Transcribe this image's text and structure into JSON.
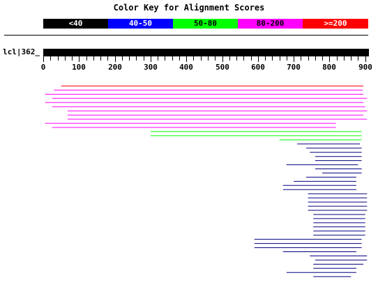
{
  "color_key": {
    "title": "Color Key for Alignment Scores",
    "ranges": [
      {
        "label": "<40",
        "color": "#000000"
      },
      {
        "label": "40-50",
        "color": "#0000ff"
      },
      {
        "label": "50-80",
        "color": "#00ff00"
      },
      {
        "label": "80-200",
        "color": "#ff00ff"
      },
      {
        "label": ">=200",
        "color": "#ff0000"
      }
    ]
  },
  "query": {
    "label": "lcl|362_"
  },
  "axis": {
    "ticks": [
      "0",
      "100",
      "200",
      "300",
      "400",
      "500",
      "600",
      "700",
      "800",
      "900"
    ]
  },
  "hits": [
    {
      "start": 50,
      "end": 895,
      "color": "#ff0000"
    },
    {
      "start": 30,
      "end": 893,
      "color": "#ff00ff"
    },
    {
      "start": 5,
      "end": 895,
      "color": "#ff00ff"
    },
    {
      "start": 25,
      "end": 905,
      "color": "#ff00ff"
    },
    {
      "start": 5,
      "end": 895,
      "color": "#ff00ff"
    },
    {
      "start": 25,
      "end": 900,
      "color": "#ff00ff"
    },
    {
      "start": 68,
      "end": 905,
      "color": "#ff00ff"
    },
    {
      "start": 68,
      "end": 895,
      "color": "#ff00ff"
    },
    {
      "start": 68,
      "end": 905,
      "color": "#ff00ff"
    },
    {
      "start": 5,
      "end": 818,
      "color": "#ff00ff"
    },
    {
      "start": 25,
      "end": 818,
      "color": "#ff00ff"
    },
    {
      "start": 300,
      "end": 890,
      "color": "#00ff00"
    },
    {
      "start": 300,
      "end": 890,
      "color": "#00ff00"
    },
    {
      "start": 660,
      "end": 890,
      "color": "#00ff00"
    },
    {
      "start": 710,
      "end": 885,
      "color": "#000080"
    },
    {
      "start": 735,
      "end": 890,
      "color": "#000080"
    },
    {
      "start": 745,
      "end": 890,
      "color": "#000080"
    },
    {
      "start": 760,
      "end": 890,
      "color": "#000080"
    },
    {
      "start": 760,
      "end": 890,
      "color": "#000080"
    },
    {
      "start": 680,
      "end": 880,
      "color": "#000080"
    },
    {
      "start": 760,
      "end": 890,
      "color": "#000080"
    },
    {
      "start": 780,
      "end": 890,
      "color": "#000080"
    },
    {
      "start": 735,
      "end": 875,
      "color": "#000080"
    },
    {
      "start": 700,
      "end": 875,
      "color": "#000080"
    },
    {
      "start": 670,
      "end": 875,
      "color": "#000080"
    },
    {
      "start": 670,
      "end": 875,
      "color": "#000080"
    },
    {
      "start": 740,
      "end": 905,
      "color": "#000080"
    },
    {
      "start": 740,
      "end": 905,
      "color": "#000080"
    },
    {
      "start": 740,
      "end": 905,
      "color": "#000080"
    },
    {
      "start": 740,
      "end": 905,
      "color": "#000080"
    },
    {
      "start": 740,
      "end": 905,
      "color": "#000080"
    },
    {
      "start": 755,
      "end": 900,
      "color": "#000080"
    },
    {
      "start": 755,
      "end": 900,
      "color": "#000080"
    },
    {
      "start": 755,
      "end": 900,
      "color": "#000080"
    },
    {
      "start": 755,
      "end": 900,
      "color": "#000080"
    },
    {
      "start": 755,
      "end": 900,
      "color": "#000080"
    },
    {
      "start": 755,
      "end": 900,
      "color": "#000080"
    },
    {
      "start": 590,
      "end": 890,
      "color": "#000080"
    },
    {
      "start": 590,
      "end": 890,
      "color": "#000080"
    },
    {
      "start": 590,
      "end": 890,
      "color": "#000080"
    },
    {
      "start": 670,
      "end": 875,
      "color": "#000080"
    },
    {
      "start": 745,
      "end": 905,
      "color": "#000080"
    },
    {
      "start": 760,
      "end": 905,
      "color": "#000080"
    },
    {
      "start": 755,
      "end": 895,
      "color": "#000080"
    },
    {
      "start": 755,
      "end": 875,
      "color": "#000080"
    },
    {
      "start": 680,
      "end": 875,
      "color": "#000080"
    },
    {
      "start": 755,
      "end": 860,
      "color": "#000080"
    }
  ]
}
